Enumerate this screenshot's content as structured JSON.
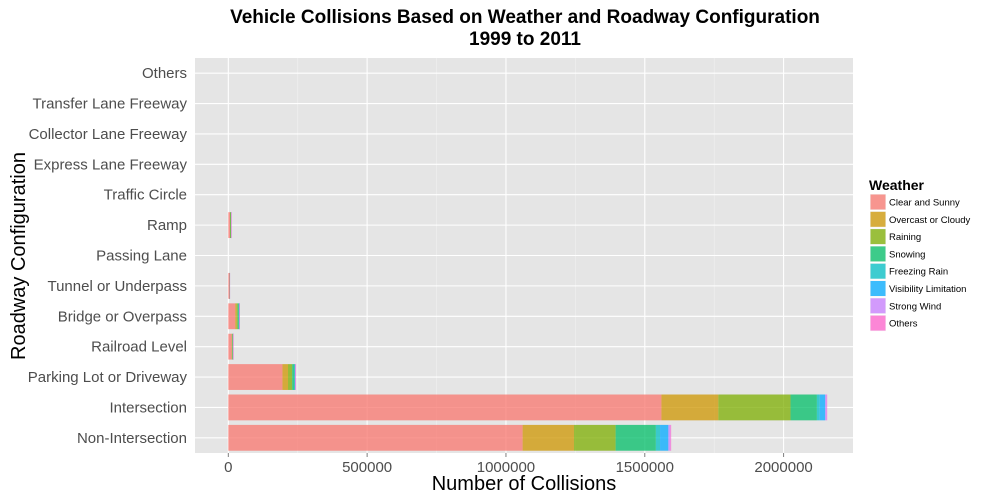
{
  "chart_data": {
    "type": "bar",
    "orientation": "horizontal",
    "stacked": true,
    "title": "Vehicle Collisions Based on Weather and Roadway Configuration",
    "subtitle": "1999 to 2011",
    "xlabel": "Number of Collisions",
    "ylabel": "Roadway Configuration",
    "xlim": [
      -120000,
      2250000
    ],
    "xticks": [
      0,
      500000,
      1000000,
      1500000,
      2000000
    ],
    "xtick_labels": [
      "0",
      "500000",
      "1000000",
      "1500000",
      "2000000"
    ],
    "grid": true,
    "legend_position": "right",
    "legend_title": "Weather",
    "categories": [
      "Non-Intersection",
      "Intersection",
      "Parking Lot or Driveway",
      "Railroad Level",
      "Bridge or Overpass",
      "Tunnel or Underpass",
      "Passing Lane",
      "Ramp",
      "Traffic Circle",
      "Express Lane Freeway",
      "Collector Lane Freeway",
      "Transfer Lane Freeway",
      "Others"
    ],
    "series": [
      {
        "name": "Clear and Sunny",
        "color": "#F8766D",
        "values": [
          1060000,
          1560000,
          195000,
          12000,
          25000,
          3000,
          0,
          6000,
          0,
          0,
          0,
          0,
          0
        ]
      },
      {
        "name": "Overcast or Cloudy",
        "color": "#CD9600",
        "values": [
          185000,
          205000,
          20000,
          2000,
          5000,
          500,
          0,
          1000,
          0,
          0,
          0,
          0,
          0
        ]
      },
      {
        "name": "Raining",
        "color": "#7CAE00",
        "values": [
          150000,
          260000,
          15000,
          1500,
          4000,
          500,
          0,
          1000,
          0,
          0,
          0,
          0,
          0
        ]
      },
      {
        "name": "Snowing",
        "color": "#00BE67",
        "values": [
          145000,
          95000,
          8000,
          1000,
          4000,
          300,
          0,
          1500,
          0,
          0,
          0,
          0,
          0
        ]
      },
      {
        "name": "Freezing Rain",
        "color": "#00BFC4",
        "values": [
          15000,
          10000,
          1000,
          100,
          500,
          50,
          0,
          100,
          0,
          0,
          0,
          0,
          0
        ]
      },
      {
        "name": "Visibility Limitation",
        "color": "#00A9FF",
        "values": [
          30000,
          20000,
          2000,
          200,
          800,
          50,
          0,
          200,
          0,
          0,
          0,
          0,
          0
        ]
      },
      {
        "name": "Strong Wind",
        "color": "#C77CFF",
        "values": [
          7000,
          5000,
          500,
          50,
          200,
          10,
          0,
          50,
          0,
          0,
          0,
          0,
          0
        ]
      },
      {
        "name": "Others",
        "color": "#FF61CC",
        "values": [
          3000,
          2000,
          200,
          20,
          100,
          10,
          0,
          20,
          0,
          0,
          0,
          0,
          0
        ]
      }
    ]
  }
}
